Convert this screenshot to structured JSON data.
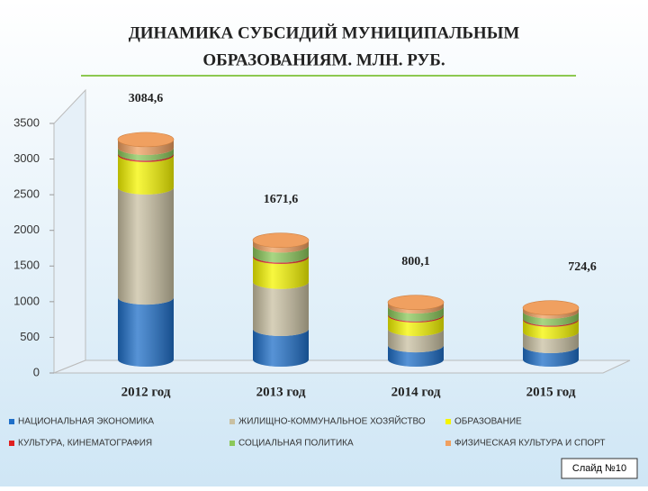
{
  "chart_data": {
    "type": "stacked_cylinder",
    "title": [
      "ДИНАМИКА СУБСИДИЙ МУНИЦИПАЛЬНЫМ",
      "ОБРАЗОВАНИЯМ. МЛН. РУБ."
    ],
    "categories": [
      "2012 год",
      "2013 год",
      "2014 год",
      "2015 год"
    ],
    "series": [
      {
        "name": "НАЦИОНАЛЬНАЯ ЭКОНОМИКА",
        "color": "#1f6fc8",
        "values": [
          870,
          430,
          200,
          190
        ]
      },
      {
        "name": "ЖИЛИЩНО-КОММУНАЛЬНОЕ ХОЗЯЙСТВО",
        "color": "#c9c0a2",
        "values": [
          1545,
          660,
          230,
          200
        ]
      },
      {
        "name": "ОБРАЗОВАНИЕ",
        "color": "#f5f500",
        "values": [
          455,
          350,
          190,
          170
        ]
      },
      {
        "name": "КУЛЬТУРА, КИНЕМАТОГРАФИЯ",
        "color": "#e02020",
        "values": [
          20,
          20,
          15,
          15
        ]
      },
      {
        "name": "СОЦИАЛЬНАЯ ПОЛИТИКА",
        "color": "#8cc85a",
        "values": [
          80,
          140,
          110,
          100
        ]
      },
      {
        "name": "ФИЗИЧЕСКАЯ КУЛЬТУРА И СПОРТ",
        "color": "#f0a060",
        "values": [
          114.6,
          71.6,
          55.1,
          49.6
        ]
      }
    ],
    "totals": [
      3084.6,
      1671.6,
      800.1,
      724.6
    ],
    "total_labels": [
      "3084,6",
      "1671,6",
      "800,1",
      "724,6"
    ],
    "ylim": [
      0,
      3500
    ],
    "yticks": [
      0,
      500,
      1000,
      1500,
      2000,
      2500,
      3000,
      3500
    ],
    "grid": false,
    "footer": "Слайд №10"
  }
}
